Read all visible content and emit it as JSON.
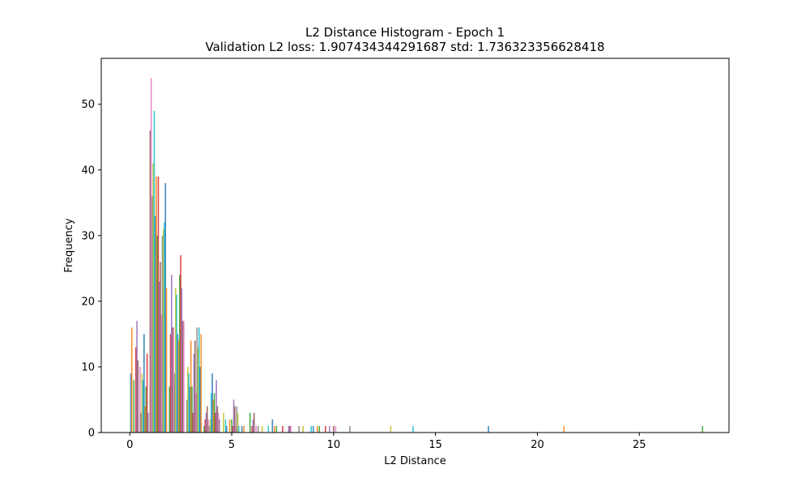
{
  "chart_data": {
    "type": "bar",
    "title": "L2 Distance Histogram - Epoch 1",
    "subtitle_prefix": "Validation L2 loss: ",
    "loss": "1.907434344291687",
    "std_prefix": " std: ",
    "std": "1.736323356628418",
    "xlabel": "L2 Distance",
    "ylabel": "Frequency",
    "xlim": [
      -1.4,
      29.4
    ],
    "ylim": [
      0,
      57
    ],
    "xticks": [
      0,
      5,
      10,
      15,
      20,
      25
    ],
    "yticks": [
      0,
      10,
      20,
      30,
      40,
      50
    ],
    "grid": false,
    "colors": [
      "#1f77b4",
      "#ff7f0e",
      "#2ca02c",
      "#d62728",
      "#9467bd",
      "#8c564b",
      "#e377c2",
      "#7f7f7f",
      "#bcbd22",
      "#17becf"
    ],
    "series_note": "many overlapping per-sample histograms (10 bins each) drawn as thin bars",
    "bars": [
      [
        0.05,
        9
      ],
      [
        0.1,
        16
      ],
      [
        0.2,
        8
      ],
      [
        0.3,
        13
      ],
      [
        0.35,
        17
      ],
      [
        0.4,
        11
      ],
      [
        0.5,
        10
      ],
      [
        0.55,
        3
      ],
      [
        0.6,
        9
      ],
      [
        0.65,
        8
      ],
      [
        0.7,
        15
      ],
      [
        0.75,
        4
      ],
      [
        0.8,
        7
      ],
      [
        0.85,
        12
      ],
      [
        0.9,
        3
      ],
      [
        1.0,
        46
      ],
      [
        1.05,
        54
      ],
      [
        1.1,
        36
      ],
      [
        1.15,
        41
      ],
      [
        1.2,
        49
      ],
      [
        1.25,
        33
      ],
      [
        1.3,
        39
      ],
      [
        1.35,
        30
      ],
      [
        1.4,
        39
      ],
      [
        1.45,
        23
      ],
      [
        1.5,
        26
      ],
      [
        1.55,
        18
      ],
      [
        1.6,
        30
      ],
      [
        1.65,
        31
      ],
      [
        1.7,
        32
      ],
      [
        1.75,
        38
      ],
      [
        1.8,
        22
      ],
      [
        1.95,
        7
      ],
      [
        2.0,
        15
      ],
      [
        2.05,
        24
      ],
      [
        2.1,
        16
      ],
      [
        2.15,
        16
      ],
      [
        2.2,
        9
      ],
      [
        2.25,
        22
      ],
      [
        2.3,
        21
      ],
      [
        2.35,
        15
      ],
      [
        2.4,
        14
      ],
      [
        2.45,
        24
      ],
      [
        2.5,
        27
      ],
      [
        2.55,
        22
      ],
      [
        2.6,
        17
      ],
      [
        2.65,
        17
      ],
      [
        2.8,
        5
      ],
      [
        2.85,
        10
      ],
      [
        2.9,
        9
      ],
      [
        2.95,
        7
      ],
      [
        3.0,
        14
      ],
      [
        3.05,
        7
      ],
      [
        3.1,
        3
      ],
      [
        3.15,
        12
      ],
      [
        3.2,
        14
      ],
      [
        3.25,
        6
      ],
      [
        3.3,
        16
      ],
      [
        3.35,
        13
      ],
      [
        3.4,
        16
      ],
      [
        3.45,
        10
      ],
      [
        3.5,
        15
      ],
      [
        3.65,
        1
      ],
      [
        3.7,
        2
      ],
      [
        3.75,
        3
      ],
      [
        3.8,
        4
      ],
      [
        3.85,
        2
      ],
      [
        3.9,
        1
      ],
      [
        3.95,
        2
      ],
      [
        4.0,
        6
      ],
      [
        4.05,
        9
      ],
      [
        4.1,
        5
      ],
      [
        4.15,
        6
      ],
      [
        4.2,
        3
      ],
      [
        4.25,
        8
      ],
      [
        4.3,
        4
      ],
      [
        4.35,
        3
      ],
      [
        4.4,
        2
      ],
      [
        4.6,
        3
      ],
      [
        4.7,
        2
      ],
      [
        4.75,
        1
      ],
      [
        4.9,
        2
      ],
      [
        5.0,
        2
      ],
      [
        5.05,
        1
      ],
      [
        5.1,
        5
      ],
      [
        5.15,
        4
      ],
      [
        5.2,
        1
      ],
      [
        5.25,
        4
      ],
      [
        5.3,
        3
      ],
      [
        5.35,
        1
      ],
      [
        5.5,
        1
      ],
      [
        5.6,
        1
      ],
      [
        5.9,
        3
      ],
      [
        6.0,
        1
      ],
      [
        6.05,
        2
      ],
      [
        6.1,
        3
      ],
      [
        6.2,
        1
      ],
      [
        6.3,
        1
      ],
      [
        6.5,
        1
      ],
      [
        6.8,
        1
      ],
      [
        7.0,
        2
      ],
      [
        7.1,
        1
      ],
      [
        7.2,
        1
      ],
      [
        7.5,
        1
      ],
      [
        7.8,
        1
      ],
      [
        7.85,
        1
      ],
      [
        7.9,
        1
      ],
      [
        8.3,
        1
      ],
      [
        8.5,
        1
      ],
      [
        8.9,
        1
      ],
      [
        9.0,
        1
      ],
      [
        9.2,
        1
      ],
      [
        9.3,
        1
      ],
      [
        9.6,
        1
      ],
      [
        9.8,
        1
      ],
      [
        10.0,
        1
      ],
      [
        10.1,
        1
      ],
      [
        10.8,
        1
      ],
      [
        12.8,
        1
      ],
      [
        13.9,
        1
      ],
      [
        17.6,
        1
      ],
      [
        21.3,
        1
      ],
      [
        28.1,
        1
      ]
    ]
  }
}
